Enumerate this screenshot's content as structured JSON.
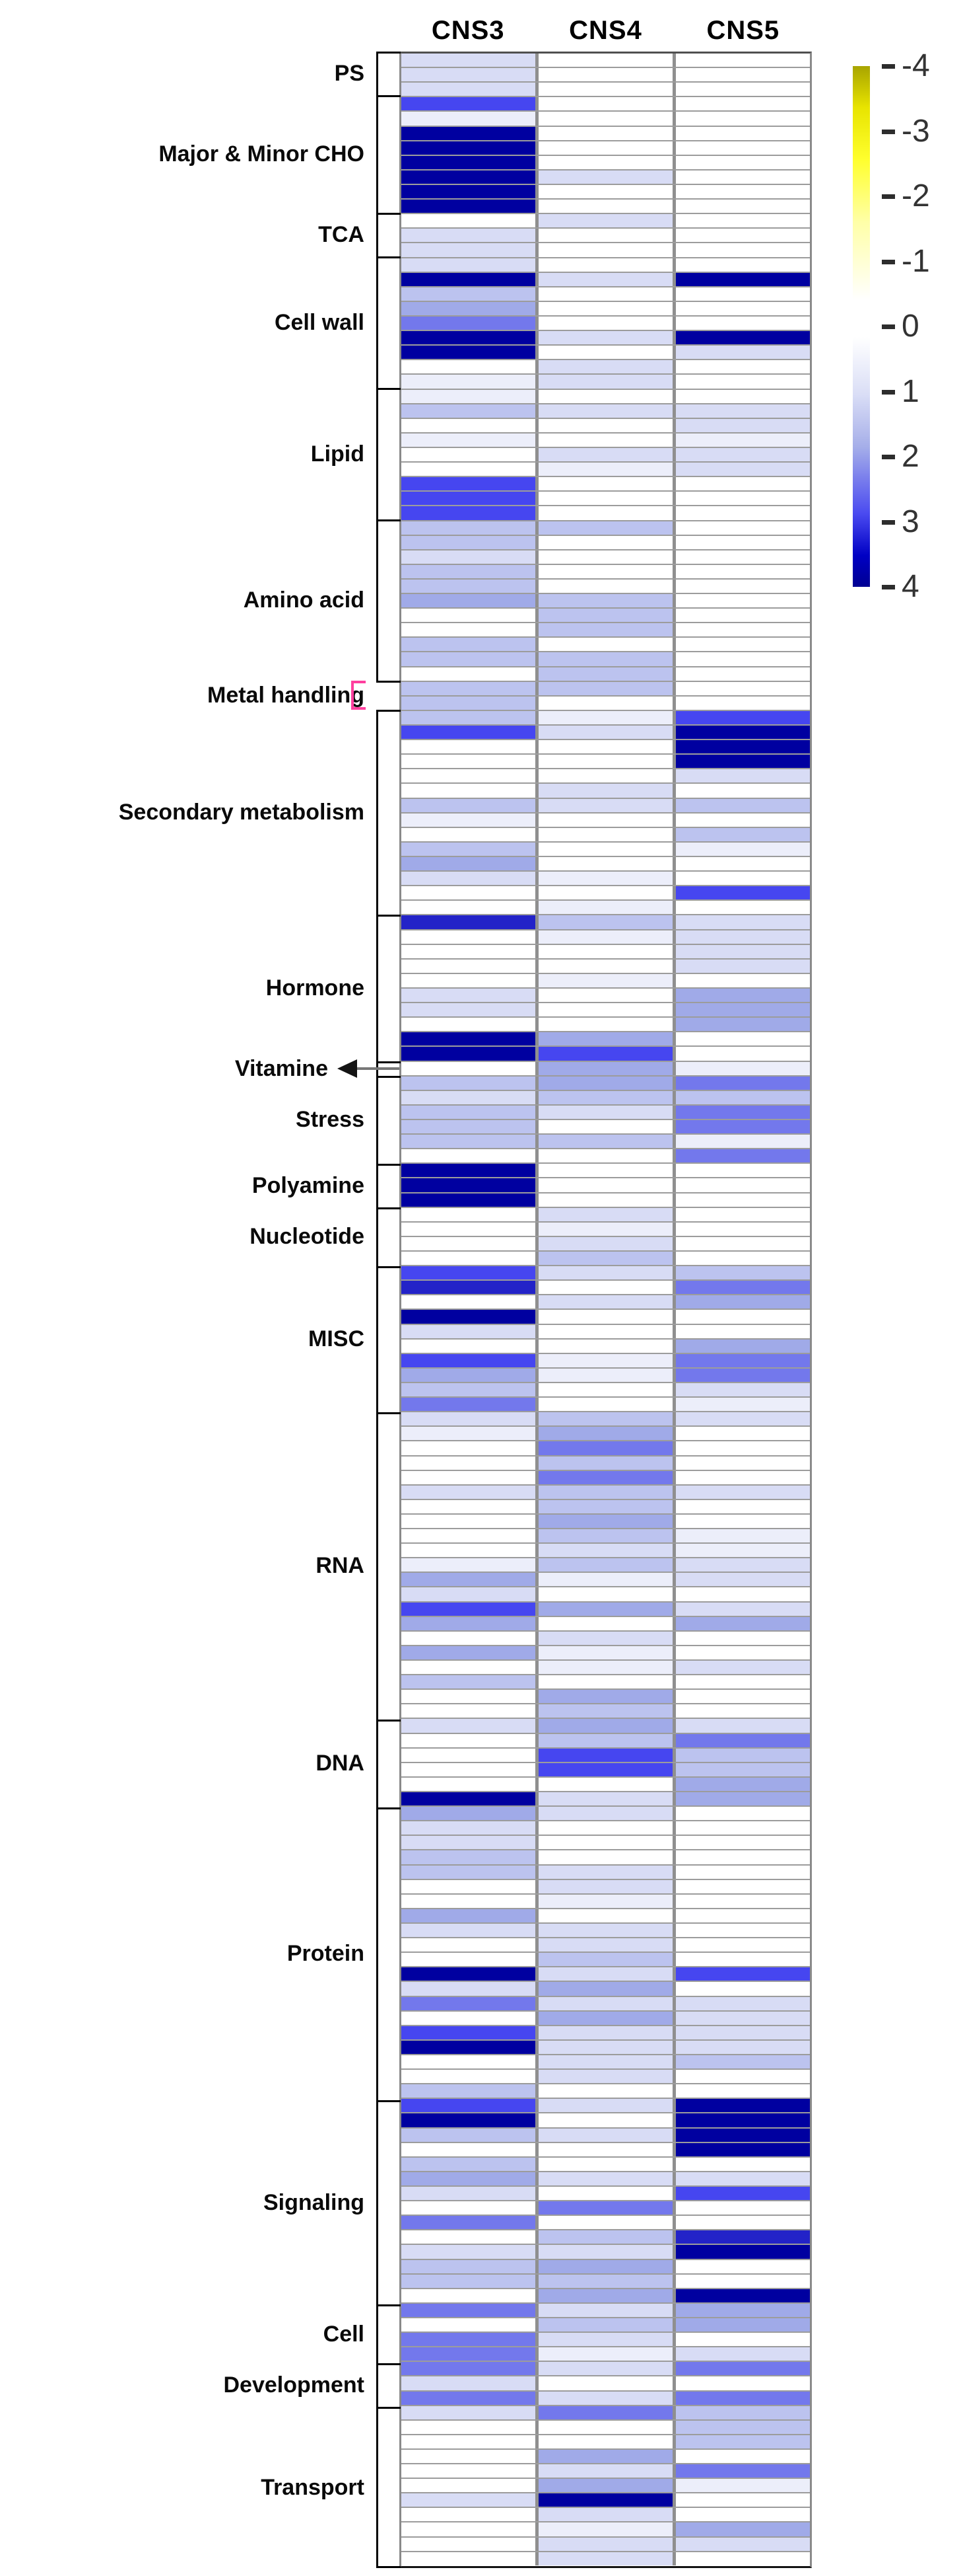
{
  "colorbar": {
    "ticks": [
      "-4",
      "-3",
      "-2",
      "-1",
      "0",
      "1",
      "2",
      "3",
      "4"
    ],
    "min": -4,
    "max": 4,
    "negative_color": "#a8a400",
    "zero_color": "#ffffff",
    "positive_color": "#000092"
  },
  "annotations": {
    "metal_handling_bracket_color": "#ff3f9e",
    "vitamine_arrow": "left-pointing arrow connecting Vitamine label to its single thin row"
  },
  "chart_data": {
    "type": "heatmap",
    "columns": [
      "CNS3",
      "CNS4",
      "CNS5"
    ],
    "value_scale": {
      "min": -4,
      "max": 4,
      "note": "yellow = negative, white = 0, blue = positive"
    },
    "legend_position": "top-right vertical colorbar",
    "grid": true,
    "categories": [
      {
        "name": "PS",
        "rows": [
          [
            1,
            0,
            0
          ],
          [
            1,
            0,
            0
          ],
          [
            1,
            0,
            0
          ]
        ]
      },
      {
        "name": "Major & Minor CHO",
        "rows": [
          [
            3,
            0,
            0
          ],
          [
            0.5,
            0,
            0
          ],
          [
            4,
            0,
            0
          ],
          [
            4,
            0,
            0
          ],
          [
            4,
            0,
            0
          ],
          [
            4,
            1,
            0
          ],
          [
            4,
            0,
            0
          ],
          [
            4,
            0,
            0
          ]
        ]
      },
      {
        "name": "TCA",
        "rows": [
          [
            0,
            1,
            0
          ],
          [
            1,
            0,
            0
          ],
          [
            1,
            0,
            0
          ]
        ]
      },
      {
        "name": "Cell wall",
        "rows": [
          [
            1,
            0,
            0
          ],
          [
            4,
            1,
            4
          ],
          [
            1.5,
            0,
            0
          ],
          [
            2,
            0,
            0
          ],
          [
            2.5,
            0,
            0
          ],
          [
            4,
            1,
            4
          ],
          [
            4,
            0,
            1
          ],
          [
            0,
            1,
            0
          ],
          [
            0.5,
            1,
            0
          ]
        ]
      },
      {
        "name": "Lipid",
        "rows": [
          [
            0.5,
            0,
            0
          ],
          [
            1.5,
            1,
            1
          ],
          [
            0,
            0,
            1
          ],
          [
            0.5,
            0,
            0.5
          ],
          [
            0,
            1,
            1
          ],
          [
            0,
            0.5,
            1
          ],
          [
            3,
            0,
            0
          ],
          [
            3,
            0,
            0
          ],
          [
            3,
            0,
            0
          ]
        ]
      },
      {
        "name": "Amino acid",
        "rows": [
          [
            1.5,
            1.5,
            0
          ],
          [
            1.5,
            0,
            0
          ],
          [
            1,
            0,
            0
          ],
          [
            1.5,
            0,
            0
          ],
          [
            1.5,
            0,
            0
          ],
          [
            2,
            1.5,
            0
          ],
          [
            0,
            1.5,
            0
          ],
          [
            0,
            1.5,
            0
          ],
          [
            1.5,
            0,
            0
          ],
          [
            1.5,
            1.5,
            0
          ],
          [
            0,
            1.5,
            0
          ]
        ]
      },
      {
        "name": "Metal handling",
        "rows": [
          [
            1.5,
            1.5,
            0
          ],
          [
            1.5,
            0,
            0
          ]
        ]
      },
      {
        "name": "Secondary metabolism",
        "rows": [
          [
            1.5,
            0.5,
            3
          ],
          [
            3,
            1,
            4
          ],
          [
            0,
            0,
            4
          ],
          [
            0,
            0,
            4
          ],
          [
            0,
            0,
            1
          ],
          [
            0,
            1,
            0
          ],
          [
            1.5,
            1,
            1.5
          ],
          [
            0.5,
            0,
            0
          ],
          [
            0,
            0,
            1.5
          ],
          [
            1.5,
            0,
            0.5
          ],
          [
            2,
            0,
            0
          ],
          [
            1,
            0.5,
            0
          ],
          [
            0,
            0,
            3
          ],
          [
            0,
            0.5,
            0
          ]
        ]
      },
      {
        "name": "Hormone",
        "rows": [
          [
            3.5,
            1.5,
            1
          ],
          [
            0,
            0.5,
            1
          ],
          [
            0,
            0,
            1
          ],
          [
            0,
            0,
            1
          ],
          [
            0,
            0.5,
            0
          ],
          [
            1,
            0,
            2
          ],
          [
            1,
            0,
            2
          ],
          [
            0,
            0,
            2
          ],
          [
            4,
            2,
            0
          ],
          [
            4,
            3,
            0
          ]
        ]
      },
      {
        "name": "Vitamine",
        "rows": [
          [
            0,
            2,
            0.5
          ]
        ]
      },
      {
        "name": "Stress",
        "rows": [
          [
            1.5,
            2,
            2.5
          ],
          [
            1,
            1.5,
            1.5
          ],
          [
            1.5,
            1,
            2.5
          ],
          [
            1.5,
            0,
            2.5
          ],
          [
            1.5,
            1.5,
            0.5
          ],
          [
            0,
            0,
            2.5
          ]
        ]
      },
      {
        "name": "Polyamine",
        "rows": [
          [
            4,
            0,
            0
          ],
          [
            4,
            0,
            0
          ],
          [
            4,
            0,
            0
          ]
        ]
      },
      {
        "name": "Nucleotide",
        "rows": [
          [
            0,
            1,
            0
          ],
          [
            0,
            0.5,
            0
          ],
          [
            0,
            1,
            0
          ],
          [
            0,
            1.5,
            0
          ]
        ]
      },
      {
        "name": "MISC",
        "rows": [
          [
            3,
            1,
            1.5
          ],
          [
            3.5,
            0,
            2.5
          ],
          [
            0,
            1,
            2
          ],
          [
            4,
            0,
            0
          ],
          [
            1,
            0,
            0
          ],
          [
            0,
            0,
            2
          ],
          [
            3,
            0.5,
            2.5
          ],
          [
            2,
            0.5,
            2.5
          ],
          [
            1.5,
            0,
            1
          ],
          [
            2.5,
            0,
            0.5
          ]
        ]
      },
      {
        "name": "RNA",
        "rows": [
          [
            1,
            1.5,
            1
          ],
          [
            0.5,
            2,
            0
          ],
          [
            0,
            2.5,
            0
          ],
          [
            0,
            1.5,
            0
          ],
          [
            0,
            2.5,
            0
          ],
          [
            1,
            1.5,
            1
          ],
          [
            0,
            1.5,
            0
          ],
          [
            0,
            2,
            0
          ],
          [
            0,
            1.5,
            0.5
          ],
          [
            0,
            1,
            0.5
          ],
          [
            0.5,
            1.5,
            1
          ],
          [
            2,
            0.5,
            1
          ],
          [
            1,
            0,
            0
          ],
          [
            3,
            2,
            1
          ],
          [
            2,
            0,
            2
          ],
          [
            0,
            1,
            0
          ],
          [
            2,
            0.5,
            0
          ],
          [
            0,
            0.5,
            1
          ],
          [
            1.5,
            0,
            0
          ],
          [
            0,
            2,
            0
          ],
          [
            0,
            1.5,
            0
          ]
        ]
      },
      {
        "name": "DNA",
        "rows": [
          [
            1,
            2,
            1
          ],
          [
            0,
            1.5,
            2.5
          ],
          [
            0,
            3,
            1.5
          ],
          [
            0,
            3,
            1.5
          ],
          [
            0,
            0,
            2
          ],
          [
            4,
            1,
            2
          ]
        ]
      },
      {
        "name": "Protein",
        "rows": [
          [
            2,
            1,
            0
          ],
          [
            1,
            0,
            0
          ],
          [
            1,
            0,
            0
          ],
          [
            1.5,
            0,
            0
          ],
          [
            1.5,
            1,
            0
          ],
          [
            0,
            1,
            0
          ],
          [
            0,
            0.5,
            0
          ],
          [
            2,
            0,
            0
          ],
          [
            1,
            1,
            0
          ],
          [
            0,
            1,
            0
          ],
          [
            0,
            1.5,
            0
          ],
          [
            4,
            1,
            3
          ],
          [
            1,
            2,
            0
          ],
          [
            2.5,
            1,
            1
          ],
          [
            0,
            2,
            1
          ],
          [
            3,
            1,
            1
          ],
          [
            4,
            1,
            1
          ],
          [
            0,
            1,
            1.5
          ],
          [
            0,
            1,
            0
          ],
          [
            1.5,
            0,
            0
          ]
        ]
      },
      {
        "name": "Signaling",
        "rows": [
          [
            3,
            1,
            4
          ],
          [
            4,
            0,
            4
          ],
          [
            1.5,
            1,
            4
          ],
          [
            0,
            0,
            4
          ],
          [
            1.5,
            0,
            0
          ],
          [
            2,
            1,
            1
          ],
          [
            1,
            0,
            3
          ],
          [
            0,
            2.5,
            0
          ],
          [
            2.5,
            0,
            0
          ],
          [
            0,
            1.5,
            3.5
          ],
          [
            1,
            1,
            4
          ],
          [
            1.5,
            2,
            0
          ],
          [
            1.5,
            1.5,
            0
          ],
          [
            0,
            2,
            4
          ]
        ]
      },
      {
        "name": "Cell",
        "rows": [
          [
            2.5,
            1,
            2
          ],
          [
            0,
            1.5,
            2
          ],
          [
            2.5,
            1,
            0
          ],
          [
            2.5,
            0.5,
            1
          ]
        ]
      },
      {
        "name": "Development",
        "rows": [
          [
            2.5,
            1,
            2.5
          ],
          [
            1,
            0,
            0
          ],
          [
            2.5,
            1,
            2.5
          ]
        ]
      },
      {
        "name": "Transport",
        "rows": [
          [
            1,
            2.5,
            1.5
          ],
          [
            0,
            0,
            1.5
          ],
          [
            0,
            0,
            1.5
          ],
          [
            0,
            2,
            0
          ],
          [
            0,
            1,
            2.5
          ],
          [
            0,
            2,
            0.5
          ],
          [
            1,
            4,
            0
          ],
          [
            0,
            1,
            0
          ],
          [
            0,
            0.5,
            2
          ],
          [
            0,
            1,
            1
          ],
          [
            0,
            1,
            0
          ]
        ]
      }
    ]
  }
}
